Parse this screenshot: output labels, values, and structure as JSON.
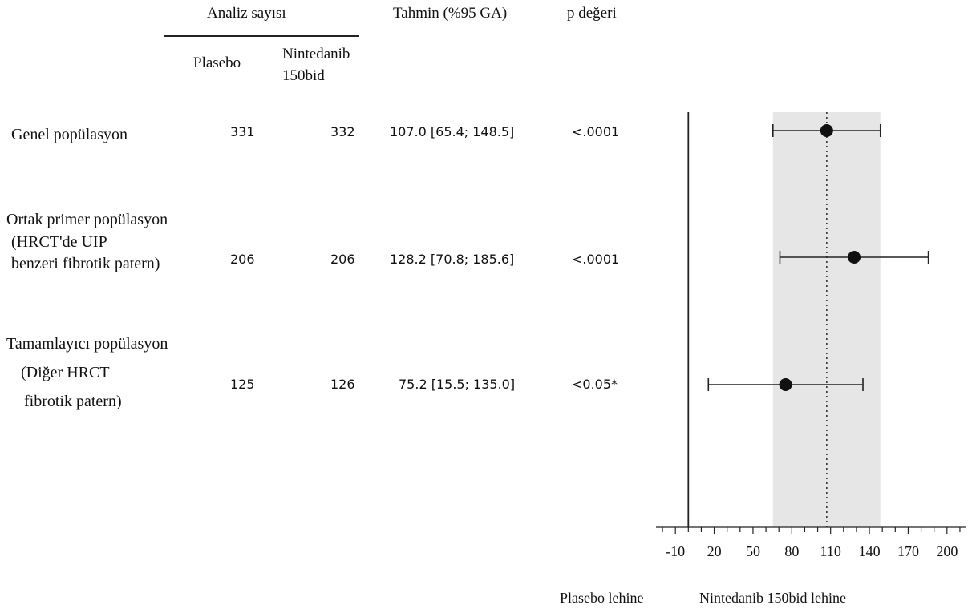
{
  "headers": {
    "analiz": "Analiz sayısı",
    "plasebo": "Plasebo",
    "nintedanib_line1": "Nintedanib",
    "nintedanib_line2": "150bid",
    "tahmin": "Tahmin (%95 GA)",
    "p": "p değeri"
  },
  "rows": [
    {
      "label_lines": [
        "Genel popülasyon"
      ],
      "plasebo_n": "331",
      "nintedanib_n": "332",
      "estimate_text": "107.0 [65.4; 148.5]",
      "p_value": "<.0001"
    },
    {
      "label_lines": [
        "Ortak primer popülasyon",
        "(HRCT'de UIP",
        "benzeri fibrotik patern)"
      ],
      "plasebo_n": "206",
      "nintedanib_n": "206",
      "estimate_text": "128.2 [70.8; 185.6]",
      "p_value": "<.0001"
    },
    {
      "label_lines": [
        "Tamamlayıcı popülasyon",
        "(Diğer HRCT",
        "fibrotik patern)"
      ],
      "plasebo_n": "125",
      "nintedanib_n": "126",
      "estimate_text": "75.2 [15.5; 135.0]",
      "p_value": "<0.05*"
    }
  ],
  "footer": {
    "left": "Plasebo lehine",
    "right": "Nintedanib 150bid lehine"
  },
  "chart_data": {
    "type": "forest",
    "x_ticks": [
      -10,
      20,
      50,
      80,
      110,
      140,
      170,
      200
    ],
    "xlim": [
      -25,
      215
    ],
    "reference_line": 0,
    "overall_estimate": 107.0,
    "overall_ci": [
      65.4,
      148.5
    ],
    "points": [
      {
        "estimate": 107.0,
        "low": 65.4,
        "high": 148.5
      },
      {
        "estimate": 128.2,
        "low": 70.8,
        "high": 185.6
      },
      {
        "estimate": 75.2,
        "low": 15.5,
        "high": 135.0
      }
    ],
    "colors": {
      "band": "#e6e6e6",
      "marker": "#111111",
      "line": "#222222"
    }
  }
}
